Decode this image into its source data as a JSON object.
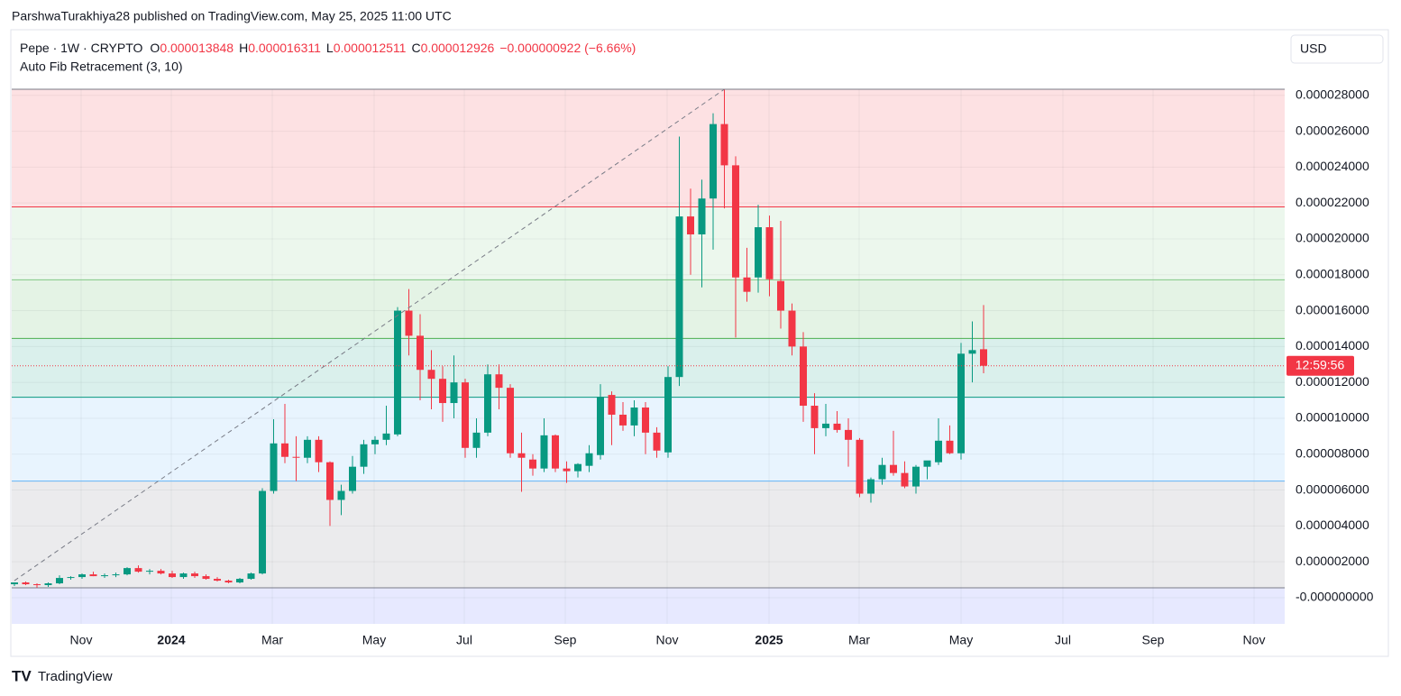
{
  "header": {
    "attribution": "ParshwaTurakhiya28 published on TradingView.com, May 25, 2025 11:00 UTC",
    "footer_logo": "TradingView"
  },
  "chart_data": {
    "type": "candlestick",
    "symbol": "Pepe · 1W · CRYPTO",
    "legend": [
      {
        "key": "O",
        "value": "0.000013848"
      },
      {
        "key": "H",
        "value": "0.000016311"
      },
      {
        "key": "L",
        "value": "0.000012511"
      },
      {
        "key": "C",
        "value": "0.000012926"
      }
    ],
    "change": "−0.000000922 (−6.66%)",
    "indicator": "Auto Fib Retracement (3, 10)",
    "currency": "USD",
    "countdown": "12:59:56",
    "up_color": "#089981",
    "down_color": "#f23645",
    "open": [
      7.5e-07,
      8.5e-07,
      7.5e-07,
      7e-07,
      8e-07,
      1.1e-06,
      1.15e-06,
      1.3e-06,
      1.2e-06,
      1.25e-06,
      1.3e-06,
      1.65e-06,
      1.45e-06,
      1.5e-06,
      1.35e-06,
      1.15e-06,
      1.35e-06,
      1.2e-06,
      1.05e-06,
      9.5e-07,
      8.5e-07,
      1.05e-06,
      1.35e-06,
      5.95e-06,
      8.6e-06,
      7.85e-06,
      7.8e-06,
      8.8e-06,
      7.55e-06,
      5.45e-06,
      5.95e-06,
      7.3e-06,
      8.55e-06,
      8.8e-06,
      9.1e-06,
      1.6e-05,
      1.46e-05,
      1.27e-05,
      1.22e-05,
      1.085e-05,
      1.2e-05,
      8.35e-06,
      9.2e-06,
      1.245e-05,
      1.17e-05,
      8.05e-06,
      7.7e-06,
      7.2e-06,
      9.05e-06,
      7.2e-06,
      7.05e-06,
      7.35e-06,
      7.95e-06,
      1.13e-05,
      1.02e-05,
      9.6e-06,
      1.06e-05,
      9.2e-06,
      8.1e-06,
      1.23e-05,
      2.125e-05,
      2.025e-05,
      2.225e-05,
      2.64e-05,
      2.41e-05,
      1.785e-05,
      1.785e-05,
      2.065e-05,
      1.765e-05,
      1.6e-05,
      1.4e-05,
      1.07e-05,
      9.45e-06,
      9.7e-06,
      9.35e-06,
      8.8e-06,
      5.8e-06,
      6.6e-06,
      7.4e-06,
      6.95e-06,
      6.2e-06,
      7.3e-06,
      7.55e-06,
      8.75e-06,
      8.05e-06,
      1.36e-05,
      1.3848e-05
    ],
    "high": [
      8.5e-07,
      9e-07,
      8e-07,
      8.5e-07,
      1.25e-06,
      1.2e-06,
      1.35e-06,
      1.45e-06,
      1.35e-06,
      1.4e-06,
      1.7e-06,
      1.8e-06,
      1.6e-06,
      1.6e-06,
      1.5e-06,
      1.4e-06,
      1.45e-06,
      1.3e-06,
      1.15e-06,
      1e-06,
      1.1e-06,
      1.4e-06,
      6.1e-06,
      9.95e-06,
      1.08e-05,
      9e-06,
      9e-06,
      9e-06,
      7.6e-06,
      6.3e-06,
      7.9e-06,
      8.8e-06,
      9e-06,
      1.07e-05,
      1.62e-05,
      1.72e-05,
      1.58e-05,
      1.38e-05,
      1.29e-05,
      1.35e-05,
      1.22e-05,
      1e-05,
      1.3e-05,
      1.3e-05,
      1.19e-05,
      9.2e-06,
      8e-06,
      1e-05,
      9.1e-06,
      7.6e-06,
      7.5e-06,
      8.5e-06,
      1.19e-05,
      1.15e-05,
      1.09e-05,
      1.1e-05,
      1.09e-05,
      9.5e-06,
      1.29e-05,
      2.57e-05,
      2.28e-05,
      2.33e-05,
      2.7e-05,
      2.834e-05,
      2.46e-05,
      1.95e-05,
      2.19e-05,
      2.13e-05,
      2.1e-05,
      1.64e-05,
      1.48e-05,
      1.14e-05,
      1.08e-05,
      1.04e-05,
      1e-05,
      8.9e-06,
      6.7e-06,
      7.8e-06,
      9.3e-06,
      7.6e-06,
      7.4e-06,
      7.6e-06,
      1e-05,
      9.6e-06,
      1.42e-05,
      1.54e-05,
      1.6311e-05
    ],
    "low": [
      6.5e-07,
      7e-07,
      5.5e-07,
      6e-07,
      7.5e-07,
      1e-06,
      1.05e-06,
      1.2e-06,
      1.1e-06,
      1.15e-06,
      1.25e-06,
      1.4e-06,
      1.3e-06,
      1.3e-06,
      1.1e-06,
      1.05e-06,
      1.1e-06,
      1e-06,
      9e-07,
      8e-07,
      8e-07,
      1e-06,
      1.3e-06,
      5.8e-06,
      7.5e-06,
      6.5e-06,
      7.5e-06,
      7e-06,
      4e-06,
      4.6e-06,
      5.8e-06,
      6.9e-06,
      8e-06,
      8.5e-06,
      9e-06,
      1.35e-05,
      1.1e-05,
      1.05e-05,
      9.8e-06,
      1e-05,
      7.8e-06,
      7.8e-06,
      9e-06,
      1.05e-05,
      7.8e-06,
      5.9e-06,
      6.8e-06,
      7e-06,
      7e-06,
      6.4e-06,
      6.7e-06,
      7e-06,
      7.7e-06,
      8.5e-06,
      9.3e-06,
      9e-06,
      8e-06,
      7.8e-06,
      7.8e-06,
      1.18e-05,
      1.8e-05,
      1.73e-05,
      1.94e-05,
      2.17e-05,
      1.45e-05,
      1.65e-05,
      1.7e-05,
      1.68e-05,
      1.5e-05,
      1.35e-05,
      9.8e-06,
      8e-06,
      9e-06,
      9.2e-06,
      7.3e-06,
      5.6e-06,
      5.3e-06,
      6.3e-06,
      6.8e-06,
      6.1e-06,
      5.8e-06,
      6.6e-06,
      7.4e-06,
      8e-06,
      7.7e-06,
      1.2e-05,
      1.2511e-05
    ],
    "close": [
      8.5e-07,
      7.5e-07,
      7e-07,
      8e-07,
      1.1e-06,
      1.15e-06,
      1.3e-06,
      1.2e-06,
      1.25e-06,
      1.3e-06,
      1.65e-06,
      1.45e-06,
      1.5e-06,
      1.35e-06,
      1.15e-06,
      1.35e-06,
      1.2e-06,
      1.05e-06,
      9.5e-07,
      8.5e-07,
      1.05e-06,
      1.35e-06,
      5.95e-06,
      8.6e-06,
      7.85e-06,
      7.8e-06,
      8.8e-06,
      7.55e-06,
      5.45e-06,
      5.95e-06,
      7.3e-06,
      8.55e-06,
      8.8e-06,
      9.15e-06,
      1.6e-05,
      1.46e-05,
      1.27e-05,
      1.22e-05,
      1.085e-05,
      1.2e-05,
      8.35e-06,
      9.2e-06,
      1.245e-05,
      1.17e-05,
      8.05e-06,
      7.8e-06,
      7.2e-06,
      9.05e-06,
      7.2e-06,
      7.05e-06,
      7.45e-06,
      8.05e-06,
      1.12e-05,
      1.02e-05,
      9.6e-06,
      1.06e-05,
      9.2e-06,
      8.2e-06,
      1.23e-05,
      2.125e-05,
      2.025e-05,
      2.225e-05,
      2.64e-05,
      2.41e-05,
      1.785e-05,
      1.705e-05,
      2.065e-05,
      1.775e-05,
      1.6e-05,
      1.4e-05,
      1.07e-05,
      9.45e-06,
      9.7e-06,
      9.35e-06,
      8.8e-06,
      5.8e-06,
      6.6e-06,
      7.4e-06,
      6.95e-06,
      6.2e-06,
      7.3e-06,
      7.65e-06,
      8.75e-06,
      8.05e-06,
      1.36e-05,
      1.38e-05,
      1.2926e-05
    ],
    "xlim": [
      -0.24,
      112.72
    ],
    "xticks": [
      {
        "value": 5.92,
        "label": "Nov"
      },
      {
        "value": 13.92,
        "label": "2024"
      },
      {
        "value": 22.88,
        "label": "Mar"
      },
      {
        "value": 31.92,
        "label": "May"
      },
      {
        "value": 39.92,
        "label": "Jul"
      },
      {
        "value": 48.88,
        "label": "Sep"
      },
      {
        "value": 57.92,
        "label": "Nov"
      },
      {
        "value": 66.96,
        "label": "2025"
      },
      {
        "value": 74.96,
        "label": "Mar"
      },
      {
        "value": 84,
        "label": "May"
      },
      {
        "value": 93.04,
        "label": "Jul"
      },
      {
        "value": 101.04,
        "label": "Sep"
      },
      {
        "value": 110,
        "label": "Nov"
      }
    ],
    "ylim": [
      -1.46e-06,
      2.834e-05
    ],
    "yticks": [
      {
        "value": 2.8e-05,
        "label": "0.000028000"
      },
      {
        "value": 2.6e-05,
        "label": "0.000026000"
      },
      {
        "value": 2.4e-05,
        "label": "0.000024000"
      },
      {
        "value": 2.2e-05,
        "label": "0.000022000"
      },
      {
        "value": 2e-05,
        "label": "0.000020000"
      },
      {
        "value": 1.8e-05,
        "label": "0.000018000"
      },
      {
        "value": 1.6e-05,
        "label": "0.000016000"
      },
      {
        "value": 1.4e-05,
        "label": "0.000014000"
      },
      {
        "value": 1.2e-05,
        "label": "0.000012000"
      },
      {
        "value": 1e-05,
        "label": "0.000010000"
      },
      {
        "value": 8e-06,
        "label": "0.000008000"
      },
      {
        "value": 6e-06,
        "label": "0.000006000"
      },
      {
        "value": 4e-06,
        "label": "0.000004000"
      },
      {
        "value": 2e-06,
        "label": "0.000002000"
      },
      {
        "value": 0,
        "label": "-0.000000000"
      }
    ],
    "grid": true,
    "fib_levels": [
      {
        "value": 2.834e-05,
        "line": "#787b86",
        "fill": "rgba(242,54,69,0.15)"
      },
      {
        "value": 2.178e-05,
        "line": "#f23645",
        "fill": "rgba(129,199,132,0.15)"
      },
      {
        "value": 1.772e-05,
        "line": "#81c784",
        "fill": "rgba(76,175,80,0.15)"
      },
      {
        "value": 1.445e-05,
        "line": "#4caf50",
        "fill": "rgba(8,153,129,0.15)"
      },
      {
        "value": 1.117e-05,
        "line": "#089981",
        "fill": "rgba(100,181,246,0.15)"
      },
      {
        "value": 6.5e-06,
        "line": "#64b5f6",
        "fill": "rgba(120,123,134,0.15)"
      },
      {
        "value": 5.5e-07,
        "line": "#787b86",
        "fill": "rgba(94,108,255,0.15)"
      }
    ],
    "fib_trend": {
      "x": [
        0,
        63
      ],
      "y": [
        9.5e-07,
        2.834e-05
      ]
    }
  }
}
